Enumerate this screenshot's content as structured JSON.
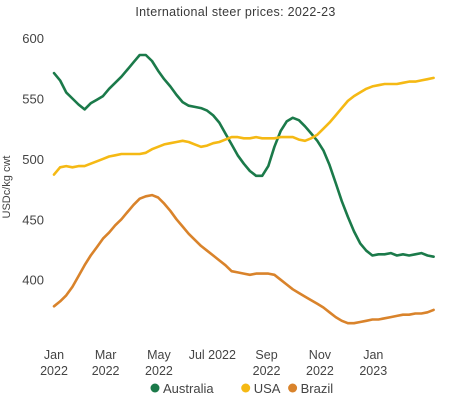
{
  "chart_data": {
    "type": "line",
    "title": "International steer prices: 2022-23",
    "xlabel": "",
    "ylabel": "USDc/kg cwt",
    "ylim": [
      360,
      610
    ],
    "yticks": [
      400,
      450,
      500,
      550,
      600
    ],
    "xrange": [
      "2022-01-01",
      "2023-04-01"
    ],
    "xticks": [
      {
        "date": "2022-01-01",
        "line1": "Jan",
        "line2": "2022"
      },
      {
        "date": "2022-03-01",
        "line1": "Mar",
        "line2": "2022"
      },
      {
        "date": "2022-05-01",
        "line1": "May",
        "line2": "2022"
      },
      {
        "date": "2022-07-01",
        "line1": "Jul 2022",
        "line2": ""
      },
      {
        "date": "2022-09-01",
        "line1": "Sep",
        "line2": "2022"
      },
      {
        "date": "2022-11-01",
        "line1": "Nov",
        "line2": "2022"
      },
      {
        "date": "2023-01-01",
        "line1": "Jan",
        "line2": "2023"
      }
    ],
    "grid": false,
    "legend_position": "bottom",
    "series": [
      {
        "name": "Australia",
        "color": "#1b7a4a",
        "points": [
          [
            "2022-01-01",
            571
          ],
          [
            "2022-01-08",
            565
          ],
          [
            "2022-01-15",
            555
          ],
          [
            "2022-01-22",
            550
          ],
          [
            "2022-01-29",
            545
          ],
          [
            "2022-02-05",
            541
          ],
          [
            "2022-02-12",
            546
          ],
          [
            "2022-02-19",
            549
          ],
          [
            "2022-02-26",
            552
          ],
          [
            "2022-03-05",
            558
          ],
          [
            "2022-03-12",
            563
          ],
          [
            "2022-03-19",
            568
          ],
          [
            "2022-03-26",
            574
          ],
          [
            "2022-04-02",
            580
          ],
          [
            "2022-04-09",
            586
          ],
          [
            "2022-04-16",
            586
          ],
          [
            "2022-04-23",
            581
          ],
          [
            "2022-04-30",
            573
          ],
          [
            "2022-05-07",
            566
          ],
          [
            "2022-05-14",
            560
          ],
          [
            "2022-05-21",
            553
          ],
          [
            "2022-05-28",
            547
          ],
          [
            "2022-06-04",
            544
          ],
          [
            "2022-06-11",
            543
          ],
          [
            "2022-06-18",
            542
          ],
          [
            "2022-06-25",
            540
          ],
          [
            "2022-07-02",
            536
          ],
          [
            "2022-07-09",
            530
          ],
          [
            "2022-07-16",
            521
          ],
          [
            "2022-07-23",
            512
          ],
          [
            "2022-07-30",
            503
          ],
          [
            "2022-08-06",
            496
          ],
          [
            "2022-08-13",
            490
          ],
          [
            "2022-08-20",
            486
          ],
          [
            "2022-08-27",
            486
          ],
          [
            "2022-09-03",
            494
          ],
          [
            "2022-09-10",
            510
          ],
          [
            "2022-09-17",
            523
          ],
          [
            "2022-09-24",
            531
          ],
          [
            "2022-10-01",
            534
          ],
          [
            "2022-10-08",
            532
          ],
          [
            "2022-10-15",
            527
          ],
          [
            "2022-10-22",
            521
          ],
          [
            "2022-10-29",
            515
          ],
          [
            "2022-11-05",
            507
          ],
          [
            "2022-11-12",
            495
          ],
          [
            "2022-11-19",
            480
          ],
          [
            "2022-11-26",
            465
          ],
          [
            "2022-12-03",
            452
          ],
          [
            "2022-12-10",
            440
          ],
          [
            "2022-12-17",
            430
          ],
          [
            "2022-12-24",
            424
          ],
          [
            "2022-12-31",
            420
          ],
          [
            "2023-01-07",
            421
          ],
          [
            "2023-01-14",
            421
          ],
          [
            "2023-01-21",
            422
          ],
          [
            "2023-01-28",
            420
          ],
          [
            "2023-02-04",
            421
          ],
          [
            "2023-02-11",
            420
          ],
          [
            "2023-02-18",
            421
          ],
          [
            "2023-02-25",
            422
          ],
          [
            "2023-03-04",
            420
          ],
          [
            "2023-03-11",
            419
          ]
        ]
      },
      {
        "name": "USA",
        "color": "#f5b914",
        "points": [
          [
            "2022-01-01",
            487
          ],
          [
            "2022-01-08",
            493
          ],
          [
            "2022-01-15",
            494
          ],
          [
            "2022-01-22",
            493
          ],
          [
            "2022-01-29",
            494
          ],
          [
            "2022-02-05",
            494
          ],
          [
            "2022-02-12",
            496
          ],
          [
            "2022-02-19",
            498
          ],
          [
            "2022-02-26",
            500
          ],
          [
            "2022-03-05",
            502
          ],
          [
            "2022-03-12",
            503
          ],
          [
            "2022-03-19",
            504
          ],
          [
            "2022-03-26",
            504
          ],
          [
            "2022-04-02",
            504
          ],
          [
            "2022-04-09",
            504
          ],
          [
            "2022-04-16",
            505
          ],
          [
            "2022-04-23",
            508
          ],
          [
            "2022-04-30",
            510
          ],
          [
            "2022-05-07",
            512
          ],
          [
            "2022-05-14",
            513
          ],
          [
            "2022-05-21",
            514
          ],
          [
            "2022-05-28",
            515
          ],
          [
            "2022-06-04",
            514
          ],
          [
            "2022-06-11",
            512
          ],
          [
            "2022-06-18",
            510
          ],
          [
            "2022-06-25",
            511
          ],
          [
            "2022-07-02",
            513
          ],
          [
            "2022-07-09",
            514
          ],
          [
            "2022-07-16",
            516
          ],
          [
            "2022-07-23",
            518
          ],
          [
            "2022-07-30",
            518
          ],
          [
            "2022-08-06",
            517
          ],
          [
            "2022-08-13",
            517
          ],
          [
            "2022-08-20",
            518
          ],
          [
            "2022-08-27",
            517
          ],
          [
            "2022-09-03",
            517
          ],
          [
            "2022-09-10",
            517
          ],
          [
            "2022-09-17",
            518
          ],
          [
            "2022-09-24",
            518
          ],
          [
            "2022-10-01",
            518
          ],
          [
            "2022-10-08",
            516
          ],
          [
            "2022-10-15",
            515
          ],
          [
            "2022-10-22",
            517
          ],
          [
            "2022-10-29",
            520
          ],
          [
            "2022-11-05",
            525
          ],
          [
            "2022-11-12",
            530
          ],
          [
            "2022-11-19",
            536
          ],
          [
            "2022-11-26",
            542
          ],
          [
            "2022-12-03",
            548
          ],
          [
            "2022-12-10",
            552
          ],
          [
            "2022-12-17",
            555
          ],
          [
            "2022-12-24",
            558
          ],
          [
            "2022-12-31",
            560
          ],
          [
            "2023-01-07",
            561
          ],
          [
            "2023-01-14",
            562
          ],
          [
            "2023-01-21",
            562
          ],
          [
            "2023-01-28",
            562
          ],
          [
            "2023-02-04",
            563
          ],
          [
            "2023-02-11",
            564
          ],
          [
            "2023-02-18",
            564
          ],
          [
            "2023-02-25",
            565
          ],
          [
            "2023-03-04",
            566
          ],
          [
            "2023-03-11",
            567
          ]
        ]
      },
      {
        "name": "Brazil",
        "color": "#d9832b",
        "points": [
          [
            "2022-01-01",
            378
          ],
          [
            "2022-01-08",
            382
          ],
          [
            "2022-01-15",
            387
          ],
          [
            "2022-01-22",
            394
          ],
          [
            "2022-01-29",
            403
          ],
          [
            "2022-02-05",
            412
          ],
          [
            "2022-02-12",
            420
          ],
          [
            "2022-02-19",
            427
          ],
          [
            "2022-02-26",
            434
          ],
          [
            "2022-03-05",
            439
          ],
          [
            "2022-03-12",
            445
          ],
          [
            "2022-03-19",
            450
          ],
          [
            "2022-03-26",
            456
          ],
          [
            "2022-04-02",
            462
          ],
          [
            "2022-04-09",
            467
          ],
          [
            "2022-04-16",
            469
          ],
          [
            "2022-04-23",
            470
          ],
          [
            "2022-04-30",
            468
          ],
          [
            "2022-05-07",
            463
          ],
          [
            "2022-05-14",
            457
          ],
          [
            "2022-05-21",
            450
          ],
          [
            "2022-05-28",
            444
          ],
          [
            "2022-06-04",
            438
          ],
          [
            "2022-06-11",
            433
          ],
          [
            "2022-06-18",
            428
          ],
          [
            "2022-06-25",
            424
          ],
          [
            "2022-07-02",
            420
          ],
          [
            "2022-07-09",
            416
          ],
          [
            "2022-07-16",
            412
          ],
          [
            "2022-07-23",
            407
          ],
          [
            "2022-07-30",
            406
          ],
          [
            "2022-08-06",
            405
          ],
          [
            "2022-08-13",
            404
          ],
          [
            "2022-08-20",
            405
          ],
          [
            "2022-08-27",
            405
          ],
          [
            "2022-09-03",
            405
          ],
          [
            "2022-09-10",
            404
          ],
          [
            "2022-09-17",
            400
          ],
          [
            "2022-09-24",
            396
          ],
          [
            "2022-10-01",
            392
          ],
          [
            "2022-10-08",
            389
          ],
          [
            "2022-10-15",
            386
          ],
          [
            "2022-10-22",
            383
          ],
          [
            "2022-10-29",
            380
          ],
          [
            "2022-11-05",
            377
          ],
          [
            "2022-11-12",
            373
          ],
          [
            "2022-11-19",
            369
          ],
          [
            "2022-11-26",
            366
          ],
          [
            "2022-12-03",
            364
          ],
          [
            "2022-12-10",
            364
          ],
          [
            "2022-12-17",
            365
          ],
          [
            "2022-12-24",
            366
          ],
          [
            "2022-12-31",
            367
          ],
          [
            "2023-01-07",
            367
          ],
          [
            "2023-01-14",
            368
          ],
          [
            "2023-01-21",
            369
          ],
          [
            "2023-01-28",
            370
          ],
          [
            "2023-02-04",
            371
          ],
          [
            "2023-02-11",
            371
          ],
          [
            "2023-02-18",
            372
          ],
          [
            "2023-02-25",
            372
          ],
          [
            "2023-03-04",
            373
          ],
          [
            "2023-03-11",
            375
          ]
        ]
      }
    ]
  }
}
